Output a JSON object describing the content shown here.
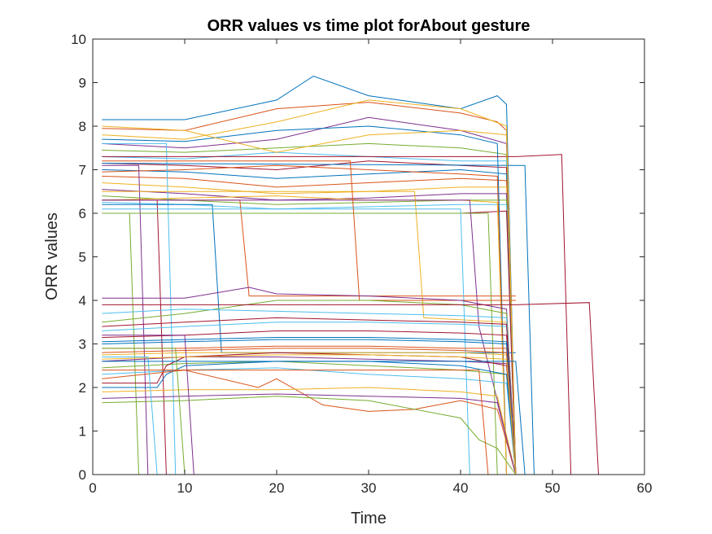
{
  "chart_data": {
    "type": "line",
    "title": "ORR values vs time plot forAbout gesture",
    "xlabel": "Time",
    "ylabel": "ORR values",
    "xlim": [
      0,
      60
    ],
    "ylim": [
      0,
      10
    ],
    "xticks": [
      0,
      10,
      20,
      30,
      40,
      50,
      60
    ],
    "yticks": [
      0,
      1,
      2,
      3,
      4,
      5,
      6,
      7,
      8,
      9,
      10
    ],
    "grid": false,
    "legend": "none",
    "colors": [
      "#0072BD",
      "#D95319",
      "#EDB120",
      "#7E2F8E",
      "#77AC30",
      "#4DBEEE",
      "#A2142F"
    ],
    "series": [
      {
        "x": [
          1,
          10,
          20,
          24,
          30,
          40,
          44,
          45,
          46
        ],
        "y": [
          8.15,
          8.15,
          8.6,
          9.15,
          8.7,
          8.4,
          8.7,
          8.5,
          0
        ]
      },
      {
        "x": [
          1,
          10,
          20,
          30,
          40,
          44,
          45,
          46
        ],
        "y": [
          7.95,
          7.9,
          8.4,
          8.55,
          8.3,
          8.1,
          7.9,
          0
        ]
      },
      {
        "x": [
          1,
          10,
          20,
          30,
          40,
          45,
          46
        ],
        "y": [
          7.8,
          7.7,
          8.1,
          8.6,
          8.4,
          8.0,
          0
        ]
      },
      {
        "x": [
          1,
          10,
          20,
          30,
          40,
          45,
          46
        ],
        "y": [
          7.6,
          7.5,
          7.7,
          8.2,
          7.9,
          7.6,
          0
        ]
      },
      {
        "x": [
          1,
          10,
          20,
          30,
          40,
          45,
          46
        ],
        "y": [
          7.45,
          7.4,
          7.5,
          7.6,
          7.5,
          7.35,
          0
        ]
      },
      {
        "x": [
          1,
          10,
          20,
          30,
          40,
          45,
          46
        ],
        "y": [
          7.3,
          7.25,
          7.4,
          7.3,
          7.2,
          7.2,
          0
        ]
      },
      {
        "x": [
          1,
          10,
          20,
          30,
          40,
          45,
          46
        ],
        "y": [
          7.15,
          7.1,
          7.0,
          7.2,
          7.1,
          7.05,
          0
        ]
      },
      {
        "x": [
          1,
          10,
          20,
          30,
          40,
          45,
          46
        ],
        "y": [
          7.0,
          6.95,
          6.8,
          6.9,
          7.0,
          6.9,
          0
        ]
      },
      {
        "x": [
          1,
          10,
          20,
          30,
          40,
          45,
          46
        ],
        "y": [
          6.85,
          6.8,
          6.6,
          6.7,
          6.8,
          6.75,
          0
        ]
      },
      {
        "x": [
          1,
          10,
          20,
          30,
          40,
          45,
          46
        ],
        "y": [
          6.7,
          6.6,
          6.45,
          6.5,
          6.6,
          6.6,
          0
        ]
      },
      {
        "x": [
          1,
          10,
          20,
          30,
          40,
          45,
          46
        ],
        "y": [
          6.55,
          6.45,
          6.3,
          6.35,
          6.45,
          6.45,
          0
        ]
      },
      {
        "x": [
          1,
          10,
          20,
          30,
          40,
          45,
          46
        ],
        "y": [
          6.4,
          6.3,
          6.2,
          6.25,
          6.3,
          6.3,
          0
        ]
      },
      {
        "x": [
          1,
          10,
          20,
          30,
          40,
          45,
          46
        ],
        "y": [
          6.25,
          6.2,
          6.1,
          6.15,
          6.2,
          6.2,
          0
        ]
      },
      {
        "x": [
          1,
          10,
          20,
          30,
          40,
          45,
          46
        ],
        "y": [
          6.0,
          6.0,
          6.0,
          6.0,
          6.0,
          6.05,
          0
        ]
      },
      {
        "x": [
          1,
          10,
          20,
          30,
          40,
          44,
          45
        ],
        "y": [
          7.7,
          7.65,
          7.9,
          8.0,
          7.8,
          7.6,
          0
        ]
      },
      {
        "x": [
          1,
          10,
          20,
          30,
          40,
          44,
          45
        ],
        "y": [
          6.95,
          7.0,
          7.1,
          7.0,
          6.9,
          6.85,
          0
        ]
      },
      {
        "x": [
          1,
          10,
          20,
          30,
          40,
          44,
          45
        ],
        "y": [
          6.3,
          6.35,
          6.4,
          6.3,
          6.3,
          6.25,
          0
        ]
      },
      {
        "x": [
          1,
          5,
          6,
          46
        ],
        "y": [
          7.1,
          7.1,
          0,
          0
        ]
      },
      {
        "x": [
          1,
          4,
          5,
          46
        ],
        "y": [
          6.0,
          6.0,
          0,
          0
        ]
      },
      {
        "x": [
          1,
          8,
          9,
          46
        ],
        "y": [
          7.6,
          7.6,
          0,
          0
        ]
      },
      {
        "x": [
          1,
          7,
          8,
          46
        ],
        "y": [
          6.3,
          6.3,
          0,
          0
        ]
      },
      {
        "x": [
          1,
          13,
          14,
          46
        ],
        "y": [
          6.2,
          6.2,
          2.8,
          2.8
        ]
      },
      {
        "x": [
          1,
          16,
          17,
          46
        ],
        "y": [
          6.3,
          6.3,
          4.1,
          4.1
        ]
      },
      {
        "x": [
          1,
          35,
          36,
          45,
          46
        ],
        "y": [
          6.5,
          6.5,
          3.6,
          3.5,
          0
        ]
      },
      {
        "x": [
          1,
          41,
          42,
          46
        ],
        "y": [
          6.3,
          6.3,
          3.4,
          0
        ]
      },
      {
        "x": [
          1,
          43,
          44,
          45
        ],
        "y": [
          6.0,
          6.0,
          0,
          0
        ]
      },
      {
        "x": [
          1,
          40,
          41
        ],
        "y": [
          6.1,
          6.1,
          0
        ]
      },
      {
        "x": [
          1,
          46,
          51,
          52,
          55
        ],
        "y": [
          7.3,
          7.3,
          7.35,
          0,
          0
        ]
      },
      {
        "x": [
          1,
          46,
          47,
          48
        ],
        "y": [
          7.15,
          7.1,
          7.1,
          0
        ]
      },
      {
        "x": [
          1,
          28,
          29,
          46
        ],
        "y": [
          7.2,
          7.2,
          4.0,
          4.0
        ]
      },
      {
        "x": [
          1,
          10,
          20,
          30,
          40,
          45,
          46
        ],
        "y": [
          8.0,
          7.9,
          7.4,
          7.8,
          7.9,
          7.8,
          0
        ]
      },
      {
        "x": [
          1,
          10,
          17,
          20,
          30,
          40,
          45,
          46
        ],
        "y": [
          4.05,
          4.05,
          4.3,
          4.15,
          4.1,
          4.0,
          3.8,
          0
        ]
      },
      {
        "x": [
          1,
          10,
          20,
          30,
          40,
          45,
          46
        ],
        "y": [
          3.5,
          3.7,
          4.0,
          4.0,
          3.9,
          3.7,
          0
        ]
      },
      {
        "x": [
          1,
          10,
          20,
          30,
          40,
          45,
          46
        ],
        "y": [
          3.3,
          3.4,
          3.5,
          3.5,
          3.45,
          3.4,
          0
        ]
      },
      {
        "x": [
          1,
          10,
          20,
          30,
          40,
          45,
          46
        ],
        "y": [
          3.15,
          3.2,
          3.3,
          3.3,
          3.25,
          3.2,
          0
        ]
      },
      {
        "x": [
          1,
          10,
          20,
          30,
          40,
          45,
          46
        ],
        "y": [
          3.0,
          3.05,
          3.1,
          3.1,
          3.05,
          3.0,
          0
        ]
      },
      {
        "x": [
          1,
          10,
          20,
          30,
          40,
          45,
          46
        ],
        "y": [
          2.9,
          2.9,
          2.95,
          2.95,
          2.9,
          2.9,
          0
        ]
      },
      {
        "x": [
          1,
          10,
          20,
          30,
          40,
          45,
          46
        ],
        "y": [
          2.75,
          2.8,
          2.8,
          2.8,
          2.8,
          2.75,
          0
        ]
      },
      {
        "x": [
          1,
          10,
          20,
          30,
          40,
          45,
          46
        ],
        "y": [
          2.6,
          2.7,
          2.7,
          2.65,
          2.6,
          2.55,
          0
        ]
      },
      {
        "x": [
          1,
          10,
          20,
          30,
          40,
          45,
          46
        ],
        "y": [
          2.45,
          2.55,
          2.6,
          2.5,
          2.4,
          2.3,
          0
        ]
      },
      {
        "x": [
          1,
          10,
          20,
          30,
          40,
          45,
          46
        ],
        "y": [
          2.3,
          2.4,
          2.45,
          2.3,
          2.2,
          2.1,
          0
        ]
      },
      {
        "x": [
          1,
          7,
          8,
          10,
          20,
          30,
          40,
          45,
          46
        ],
        "y": [
          2.1,
          2.1,
          2.5,
          2.7,
          2.8,
          2.75,
          2.7,
          2.5,
          0
        ]
      },
      {
        "x": [
          1,
          7,
          8,
          10,
          20,
          30,
          40,
          45,
          46
        ],
        "y": [
          2.0,
          2.0,
          2.3,
          2.5,
          2.6,
          2.6,
          2.5,
          2.3,
          0
        ]
      },
      {
        "x": [
          1,
          10,
          18,
          20,
          25,
          30,
          35,
          40,
          44,
          46
        ],
        "y": [
          2.2,
          2.4,
          2.0,
          2.2,
          1.6,
          1.45,
          1.5,
          1.7,
          1.5,
          0
        ]
      },
      {
        "x": [
          1,
          10,
          20,
          30,
          40,
          44,
          46
        ],
        "y": [
          1.9,
          1.95,
          1.95,
          2.0,
          1.9,
          1.8,
          0
        ]
      },
      {
        "x": [
          1,
          10,
          20,
          30,
          40,
          44,
          46
        ],
        "y": [
          1.75,
          1.8,
          1.85,
          1.8,
          1.75,
          1.65,
          0
        ]
      },
      {
        "x": [
          1,
          10,
          20,
          30,
          40,
          42,
          44,
          46
        ],
        "y": [
          1.65,
          1.7,
          1.8,
          1.7,
          1.3,
          0.8,
          0.6,
          0
        ]
      },
      {
        "x": [
          1,
          10,
          20,
          30,
          40,
          45,
          46
        ],
        "y": [
          3.7,
          3.8,
          3.75,
          3.7,
          3.65,
          3.6,
          0
        ]
      },
      {
        "x": [
          1,
          10,
          20,
          30,
          40,
          45,
          46
        ],
        "y": [
          3.4,
          3.5,
          3.6,
          3.55,
          3.5,
          3.45,
          0
        ]
      },
      {
        "x": [
          1,
          10,
          20,
          30,
          40,
          45,
          46
        ],
        "y": [
          3.05,
          3.1,
          3.15,
          3.15,
          3.1,
          3.05,
          0
        ]
      },
      {
        "x": [
          1,
          10,
          20,
          30,
          40,
          45,
          46
        ],
        "y": [
          2.8,
          2.85,
          2.9,
          2.9,
          2.85,
          2.8,
          0
        ]
      },
      {
        "x": [
          1,
          10,
          20,
          30,
          40,
          45,
          46
        ],
        "y": [
          2.65,
          2.7,
          2.75,
          2.75,
          2.7,
          2.65,
          0
        ]
      },
      {
        "x": [
          1,
          10,
          11,
          46
        ],
        "y": [
          3.2,
          3.2,
          0,
          0
        ]
      },
      {
        "x": [
          1,
          9,
          10,
          46
        ],
        "y": [
          2.9,
          2.9,
          0,
          0
        ]
      },
      {
        "x": [
          1,
          6,
          7,
          46
        ],
        "y": [
          2.7,
          2.7,
          0,
          0
        ]
      },
      {
        "x": [
          1,
          46,
          54,
          55
        ],
        "y": [
          3.9,
          3.9,
          3.95,
          0
        ]
      },
      {
        "x": [
          1,
          46,
          47
        ],
        "y": [
          2.6,
          2.6,
          0
        ]
      },
      {
        "x": [
          1,
          42,
          43
        ],
        "y": [
          2.4,
          2.4,
          0
        ]
      }
    ]
  }
}
